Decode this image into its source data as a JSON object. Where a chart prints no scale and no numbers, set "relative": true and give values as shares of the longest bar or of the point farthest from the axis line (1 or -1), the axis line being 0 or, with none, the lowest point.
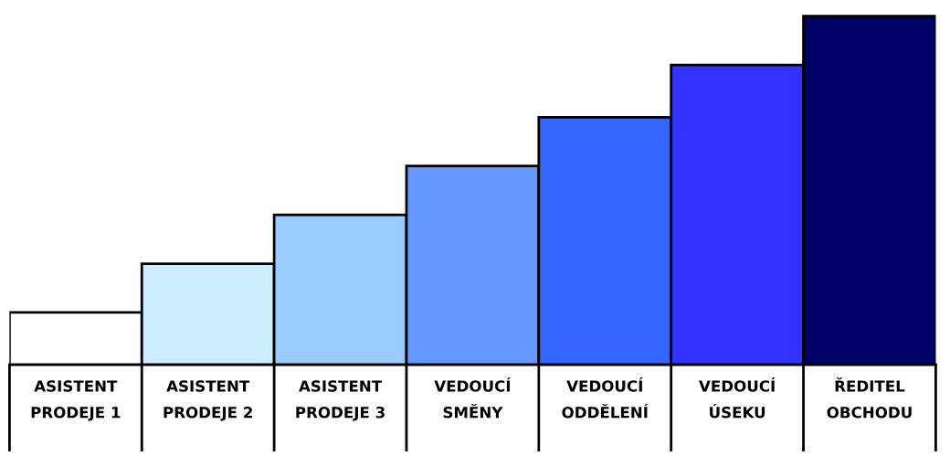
{
  "chart_data": {
    "type": "bar",
    "relative": true,
    "categories": [
      "ASISTENT\nPRODEJE 1",
      "ASISTENT\nPRODEJE 2",
      "ASISTENT\nPRODEJE 3",
      "VEDOUCÍ\nSMĚNY",
      "VEDOUCÍ\nODDĚLENÍ",
      "VEDOUCÍ\nÚSEKU",
      "ŘEDITEL\nOBCHODU"
    ],
    "values": [
      0.15,
      0.29,
      0.43,
      0.57,
      0.71,
      0.86,
      1.0
    ],
    "colors": [
      "#ffffff",
      "#cceeff",
      "#99ccff",
      "#6699ff",
      "#3366ff",
      "#3333ff",
      "#000066"
    ],
    "grid": false,
    "legend": false
  }
}
